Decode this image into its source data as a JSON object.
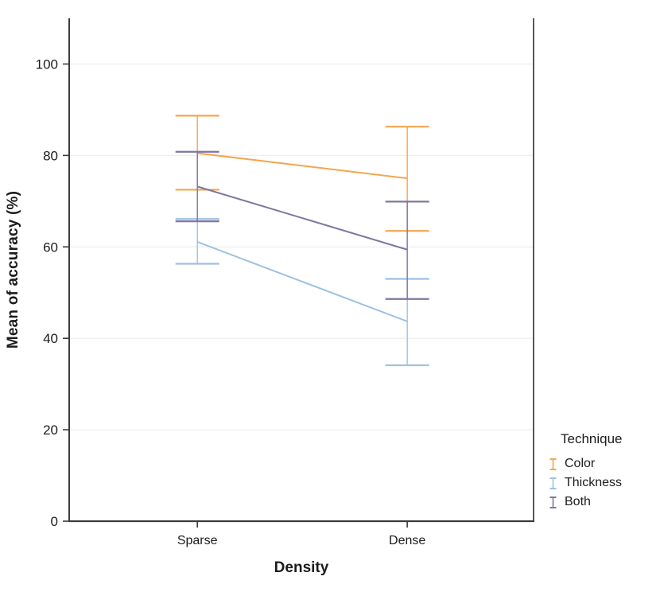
{
  "chart_data": {
    "type": "line",
    "title": "",
    "xlabel": "Density",
    "ylabel": "Mean of accuracy (%)",
    "categories": [
      "Sparse",
      "Dense"
    ],
    "ylim": [
      0,
      110
    ],
    "yticks": [
      0,
      20,
      40,
      60,
      80,
      100
    ],
    "grid": "horizontal-light",
    "error_bars": "95% CI, capped",
    "legend": {
      "title": "Technique",
      "position": "right-bottom"
    },
    "series": [
      {
        "name": "Color",
        "color": "#F5A54E",
        "means": [
          80.5,
          75.0
        ],
        "ci_low": [
          72.5,
          63.5
        ],
        "ci_high": [
          88.7,
          86.3
        ]
      },
      {
        "name": "Thickness",
        "color": "#9DC1E2",
        "means": [
          61.1,
          43.7
        ],
        "ci_low": [
          56.3,
          34.1
        ],
        "ci_high": [
          66.1,
          53.0
        ]
      },
      {
        "name": "Both",
        "color": "#7E76A0",
        "means": [
          73.2,
          59.4
        ],
        "ci_low": [
          65.6,
          48.6
        ],
        "ci_high": [
          80.8,
          69.9
        ]
      }
    ],
    "colors": {
      "axis": "#3c3c3c",
      "right_border": "#58585a",
      "gridline": "#f0eff0",
      "text": "#1c1c1c"
    }
  }
}
